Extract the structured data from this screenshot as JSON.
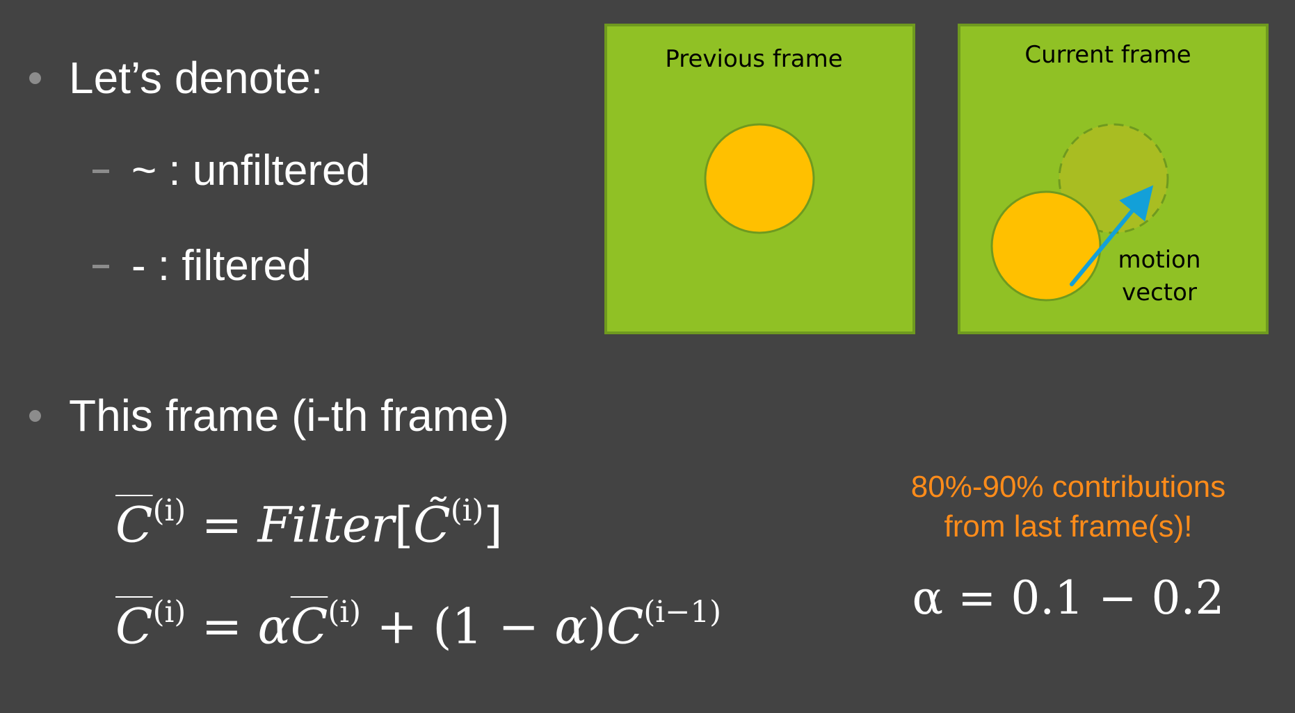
{
  "bullets": {
    "intro": "Let’s denote:",
    "sub1": "~ : unfiltered",
    "sub2": "- : filtered",
    "frame": "This frame (i-th frame)"
  },
  "previous_panel": {
    "title": "Previous frame"
  },
  "current_panel": {
    "title": "Current frame",
    "arrow_label_line1": "motion",
    "arrow_label_line2": "vector"
  },
  "equations": {
    "eq1_filter_word": "Filter",
    "sup_i": "(i)",
    "sup_i_minus_1": "(i−1)",
    "alpha_eq": "α = 0.1 − 0.2"
  },
  "note": {
    "line1": "80%-90% contributions",
    "line2": "from last frame(s)!"
  },
  "colors": {
    "background": "#434343",
    "panel_fill": "#90c125",
    "panel_border": "#6f9a1f",
    "circle_fill": "#ffc000",
    "ghost_circle_fill": "#a9bd22",
    "arrow": "#13a0d8",
    "note": "#ff8c1a"
  }
}
